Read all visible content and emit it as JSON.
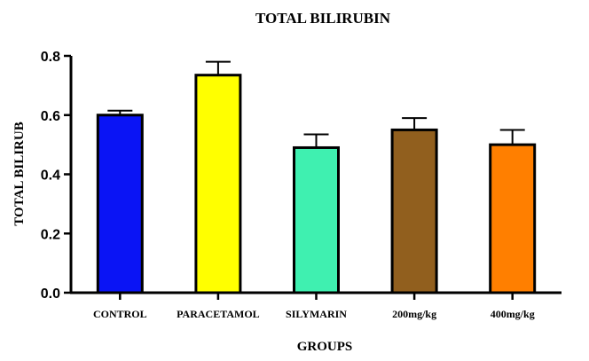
{
  "chart_data": {
    "type": "bar",
    "title": "TOTAL BILIRUBIN",
    "xlabel": "GROUPS",
    "ylabel": "TOTAL BILIRUB",
    "categories": [
      "CONTROL",
      "PARACETAMOL",
      "SILYMARIN",
      "200mg/kg",
      "400mg/kg"
    ],
    "values": [
      0.6,
      0.735,
      0.49,
      0.55,
      0.5
    ],
    "error_upper": [
      0.015,
      0.045,
      0.045,
      0.04,
      0.05
    ],
    "colors": [
      "#0a14f5",
      "#ffff00",
      "#3ff0b0",
      "#915f1e",
      "#ff7f00"
    ],
    "ylim": [
      0,
      0.8
    ],
    "yticks": [
      "0.0",
      "0.2",
      "0.4",
      "0.6",
      "0.8"
    ],
    "ytick_values": [
      0,
      0.2,
      0.4,
      0.6,
      0.8
    ],
    "grid": false,
    "error_bars": "upper"
  }
}
